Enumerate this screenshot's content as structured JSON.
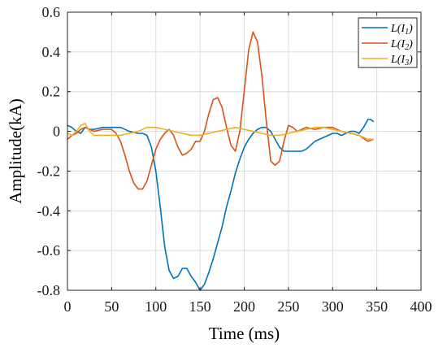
{
  "chart_data": {
    "type": "line",
    "xlabel": "Time (ms)",
    "ylabel": "Amplitude(kA)",
    "xlim": [
      0,
      400
    ],
    "ylim": [
      -0.8,
      0.6
    ],
    "xticks": [
      "0",
      "50",
      "100",
      "150",
      "200",
      "250",
      "300",
      "350",
      "400"
    ],
    "yticks": [
      "0.6",
      "0.4",
      "0.2",
      "0",
      "-0.2",
      "-0.4",
      "-0.6",
      "-0.8"
    ],
    "grid": true,
    "legend_position": "top-right",
    "series": [
      {
        "name": "L(I1)",
        "legend": {
          "base": "L(I",
          "sub": "1",
          "tail": ")"
        },
        "color": "#0072BD",
        "x": [
          0,
          5,
          10,
          15,
          20,
          25,
          30,
          40,
          50,
          60,
          70,
          80,
          85,
          90,
          95,
          100,
          105,
          110,
          115,
          120,
          125,
          130,
          135,
          140,
          145,
          150,
          155,
          160,
          165,
          170,
          175,
          180,
          185,
          190,
          195,
          200,
          205,
          210,
          215,
          220,
          225,
          230,
          235,
          240,
          245,
          250,
          255,
          260,
          265,
          270,
          275,
          280,
          285,
          290,
          295,
          300,
          305,
          310,
          315,
          320,
          325,
          330,
          335,
          340,
          343,
          346
        ],
        "y": [
          0.03,
          0.02,
          0.0,
          -0.01,
          0.02,
          0.01,
          0.01,
          0.02,
          0.02,
          0.02,
          0.0,
          -0.01,
          -0.01,
          -0.02,
          -0.08,
          -0.2,
          -0.38,
          -0.58,
          -0.7,
          -0.74,
          -0.73,
          -0.69,
          -0.69,
          -0.73,
          -0.76,
          -0.8,
          -0.77,
          -0.71,
          -0.64,
          -0.56,
          -0.48,
          -0.38,
          -0.3,
          -0.21,
          -0.14,
          -0.08,
          -0.04,
          -0.01,
          0.01,
          0.02,
          0.02,
          0.0,
          -0.04,
          -0.08,
          -0.1,
          -0.1,
          -0.1,
          -0.1,
          -0.1,
          -0.09,
          -0.07,
          -0.05,
          -0.04,
          -0.03,
          -0.02,
          -0.01,
          -0.01,
          -0.02,
          -0.01,
          0.0,
          0.0,
          -0.01,
          0.02,
          0.06,
          0.06,
          0.05
        ]
      },
      {
        "name": "L(I2)",
        "legend": {
          "base": "L(I",
          "sub": "2",
          "tail": ")"
        },
        "color": "#D95319",
        "x": [
          0,
          5,
          10,
          15,
          20,
          25,
          30,
          40,
          50,
          55,
          60,
          65,
          70,
          75,
          80,
          85,
          90,
          95,
          100,
          105,
          110,
          115,
          120,
          125,
          130,
          135,
          140,
          145,
          150,
          155,
          160,
          165,
          170,
          175,
          180,
          185,
          190,
          195,
          200,
          205,
          210,
          215,
          220,
          225,
          230,
          235,
          240,
          245,
          250,
          255,
          260,
          265,
          270,
          280,
          290,
          300,
          310,
          320,
          330,
          340,
          346
        ],
        "y": [
          -0.04,
          -0.02,
          -0.01,
          0.01,
          0.02,
          0.01,
          0.0,
          0.01,
          0.01,
          -0.01,
          -0.05,
          -0.12,
          -0.2,
          -0.26,
          -0.29,
          -0.29,
          -0.25,
          -0.17,
          -0.09,
          -0.04,
          -0.01,
          0.01,
          -0.02,
          -0.08,
          -0.12,
          -0.11,
          -0.09,
          -0.05,
          -0.05,
          0.0,
          0.09,
          0.16,
          0.17,
          0.12,
          0.02,
          -0.07,
          -0.1,
          0.0,
          0.2,
          0.41,
          0.5,
          0.45,
          0.28,
          0.05,
          -0.15,
          -0.17,
          -0.15,
          -0.05,
          0.03,
          0.02,
          0.0,
          0.01,
          0.02,
          0.01,
          0.02,
          0.02,
          0.0,
          -0.01,
          -0.02,
          -0.05,
          -0.04
        ]
      },
      {
        "name": "L(I3)",
        "legend": {
          "base": "L(I",
          "sub": "3",
          "tail": ")"
        },
        "color": "#EDB120",
        "x": [
          0,
          5,
          10,
          15,
          20,
          25,
          30,
          40,
          50,
          60,
          70,
          80,
          90,
          100,
          110,
          120,
          130,
          140,
          150,
          160,
          170,
          180,
          190,
          200,
          210,
          220,
          230,
          240,
          250,
          260,
          270,
          280,
          290,
          300,
          310,
          320,
          330,
          340,
          346
        ],
        "y": [
          -0.01,
          -0.02,
          0.0,
          0.03,
          0.04,
          0.0,
          -0.02,
          -0.02,
          -0.02,
          -0.02,
          -0.01,
          0.0,
          0.02,
          0.02,
          0.01,
          0.0,
          -0.01,
          -0.02,
          -0.02,
          -0.01,
          0.0,
          0.01,
          0.02,
          0.01,
          0.0,
          -0.01,
          -0.02,
          -0.02,
          -0.01,
          0.0,
          0.01,
          0.02,
          0.02,
          0.01,
          0.0,
          -0.01,
          -0.02,
          -0.04,
          -0.04
        ]
      }
    ]
  }
}
